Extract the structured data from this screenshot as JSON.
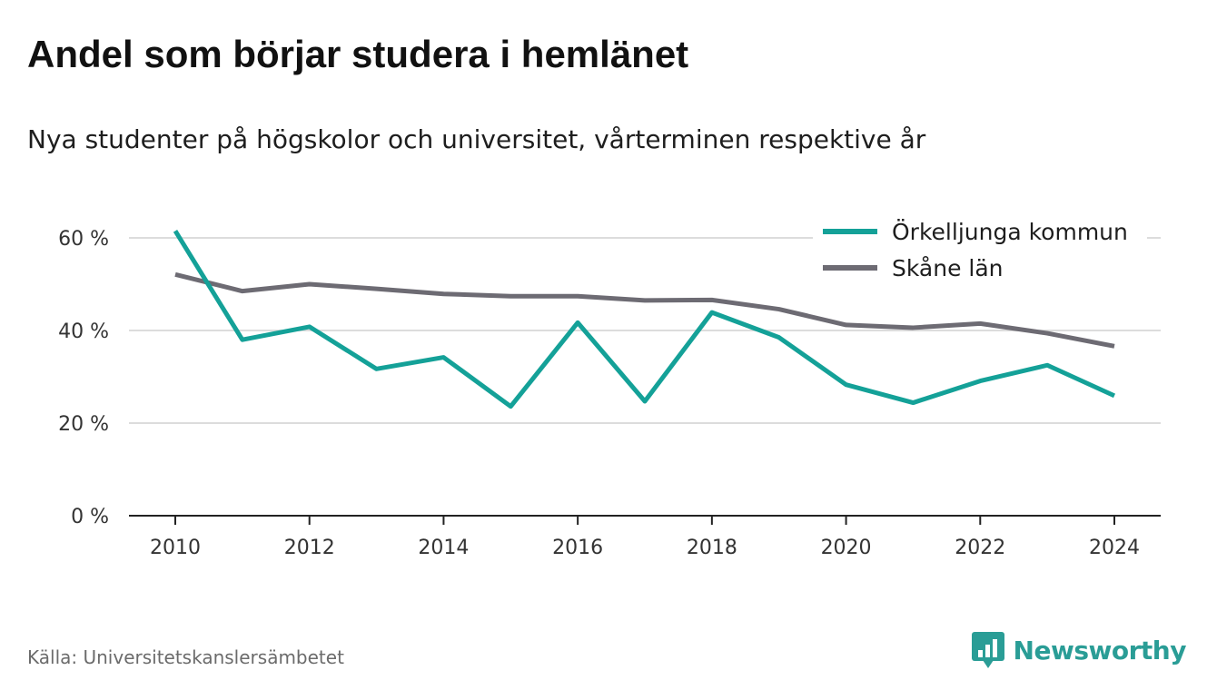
{
  "title": "Andel som börjar studera i hemlänet",
  "subtitle": "Nya studenter på högskolor och universitet, vårterminen respektive år",
  "source": "Källa: Universitetskanslersämbetet",
  "brand": {
    "name": "Newsworthy",
    "icon": "bar-chart-speech-bubble-icon",
    "color": "#2a9d96"
  },
  "chart_data": {
    "type": "line",
    "x": [
      2010,
      2011,
      2012,
      2013,
      2014,
      2015,
      2016,
      2017,
      2018,
      2019,
      2020,
      2021,
      2022,
      2023,
      2024
    ],
    "x_ticks": [
      "2010",
      "2012",
      "2014",
      "2016",
      "2018",
      "2020",
      "2022",
      "2024"
    ],
    "y_ticks": [
      "0 %",
      "20 %",
      "40 %",
      "60 %"
    ],
    "ylim": [
      0,
      60
    ],
    "grid": true,
    "legend_position": "top-right",
    "series": [
      {
        "name": "Örkelljunga kommun",
        "color": "#14a198",
        "values": [
          61.5,
          38.0,
          40.8,
          31.7,
          34.2,
          23.6,
          41.7,
          24.7,
          43.9,
          38.5,
          28.3,
          24.4,
          29.1,
          32.5,
          25.9
        ]
      },
      {
        "name": "Skåne län",
        "color": "#6d6b73",
        "values": [
          52.1,
          48.5,
          50.0,
          49.0,
          47.9,
          47.4,
          47.4,
          46.5,
          46.6,
          44.6,
          41.2,
          40.6,
          41.5,
          39.4,
          36.6
        ]
      }
    ]
  }
}
